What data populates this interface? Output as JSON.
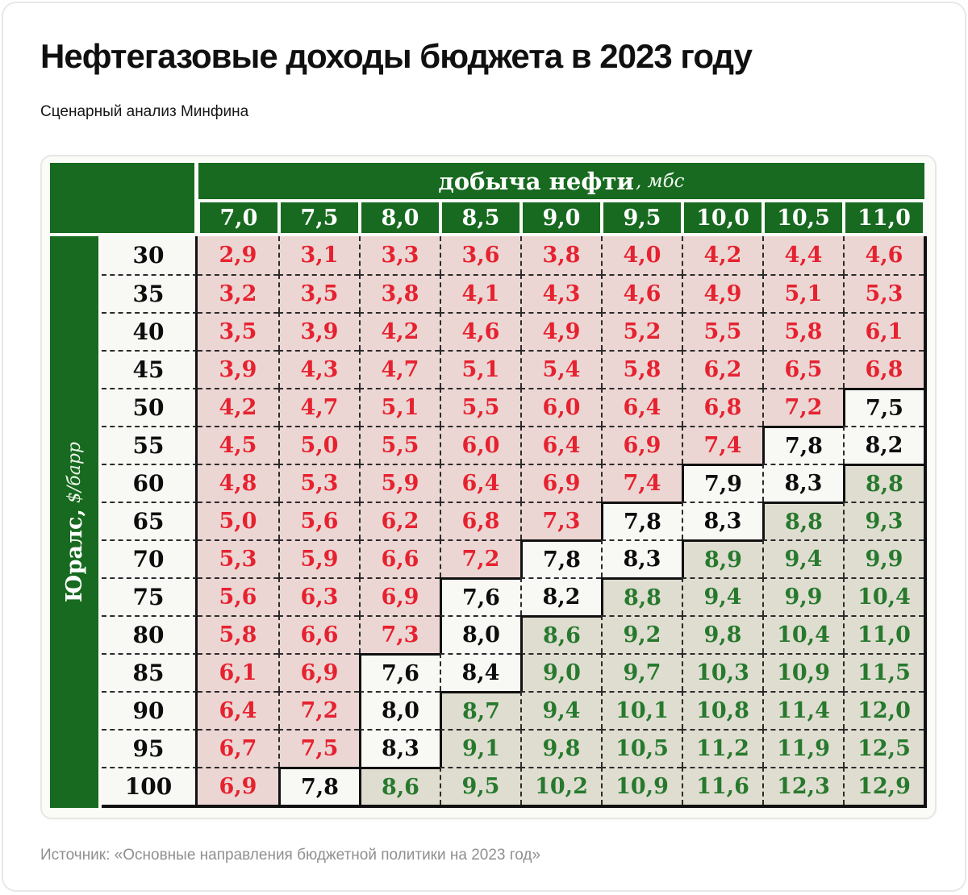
{
  "title": "Нефтегазовые доходы бюджета в 2023 году",
  "subtitle": "Сценарный анализ Минфина",
  "source": "Источник: «Основные направления бюджетной политики на 2023 год»",
  "table": {
    "col_header_label": "добыча нефти",
    "col_header_unit": ", мбс",
    "row_header_label": "Юралс,",
    "row_header_unit": " $/барр"
  },
  "colors": {
    "header_green": "#176a1f",
    "red_zone_bg": "#ecd6d3",
    "red_zone_text": "#e62230",
    "neutral_zone_bg": "#f8f8f5",
    "green_zone_bg": "#dfddd0",
    "green_zone_text": "#27792d",
    "boundary_black": "#111111"
  },
  "chart_data": {
    "type": "heatmap",
    "title": "Нефтегазовые доходы бюджета в 2023 году",
    "subtitle": "Сценарный анализ Минфина",
    "xlabel": "добыча нефти, мбс",
    "ylabel": "Юралс, $/барр",
    "x": [
      7.0,
      7.5,
      8.0,
      8.5,
      9.0,
      9.5,
      10.0,
      10.5,
      11.0
    ],
    "y": [
      30,
      35,
      40,
      45,
      50,
      55,
      60,
      65,
      70,
      75,
      80,
      85,
      90,
      95,
      100
    ],
    "values": [
      [
        2.9,
        3.1,
        3.3,
        3.6,
        3.8,
        4.0,
        4.2,
        4.4,
        4.6
      ],
      [
        3.2,
        3.5,
        3.8,
        4.1,
        4.3,
        4.6,
        4.9,
        5.1,
        5.3
      ],
      [
        3.5,
        3.9,
        4.2,
        4.6,
        4.9,
        5.2,
        5.5,
        5.8,
        6.1
      ],
      [
        3.9,
        4.3,
        4.7,
        5.1,
        5.4,
        5.8,
        6.2,
        6.5,
        6.8
      ],
      [
        4.2,
        4.7,
        5.1,
        5.5,
        6.0,
        6.4,
        6.8,
        7.2,
        7.5
      ],
      [
        4.5,
        5.0,
        5.5,
        6.0,
        6.4,
        6.9,
        7.4,
        7.8,
        8.2
      ],
      [
        4.8,
        5.3,
        5.9,
        6.4,
        6.9,
        7.4,
        7.9,
        8.3,
        8.8
      ],
      [
        5.0,
        5.6,
        6.2,
        6.8,
        7.3,
        7.8,
        8.3,
        8.8,
        9.3
      ],
      [
        5.3,
        5.9,
        6.6,
        7.2,
        7.8,
        8.3,
        8.9,
        9.4,
        9.9
      ],
      [
        5.6,
        6.3,
        6.9,
        7.6,
        8.2,
        8.8,
        9.4,
        9.9,
        10.4
      ],
      [
        5.8,
        6.6,
        7.3,
        8.0,
        8.6,
        9.2,
        9.8,
        10.4,
        11.0
      ],
      [
        6.1,
        6.9,
        7.6,
        8.4,
        9.0,
        9.7,
        10.3,
        10.9,
        11.5
      ],
      [
        6.4,
        7.2,
        8.0,
        8.7,
        9.4,
        10.1,
        10.8,
        11.4,
        12.0
      ],
      [
        6.7,
        7.5,
        8.3,
        9.1,
        9.8,
        10.5,
        11.2,
        11.9,
        12.5
      ],
      [
        6.9,
        7.8,
        8.6,
        9.5,
        10.2,
        10.9,
        11.6,
        12.3,
        12.9
      ]
    ],
    "zones": [
      "rrrrrrrrr",
      "rrrrrrrrr",
      "rrrrrrrrr",
      "rrrrrrrrr",
      "rrrrrrrrk",
      "rrrrrrrkk",
      "rrrrrrkkg",
      "rrrrrkkgg",
      "rrrrkkggg",
      "rrrkkgggg",
      "rrrkggggg",
      "rrkkggggg",
      "rrkgggggg",
      "rrkgggggg",
      "rkggggggg"
    ],
    "decimal_separator": ",",
    "legend_note": "r = red text on pink, k = black text on white, g = green text on beige",
    "grid": "dashed cell borders, solid black zone boundaries"
  }
}
